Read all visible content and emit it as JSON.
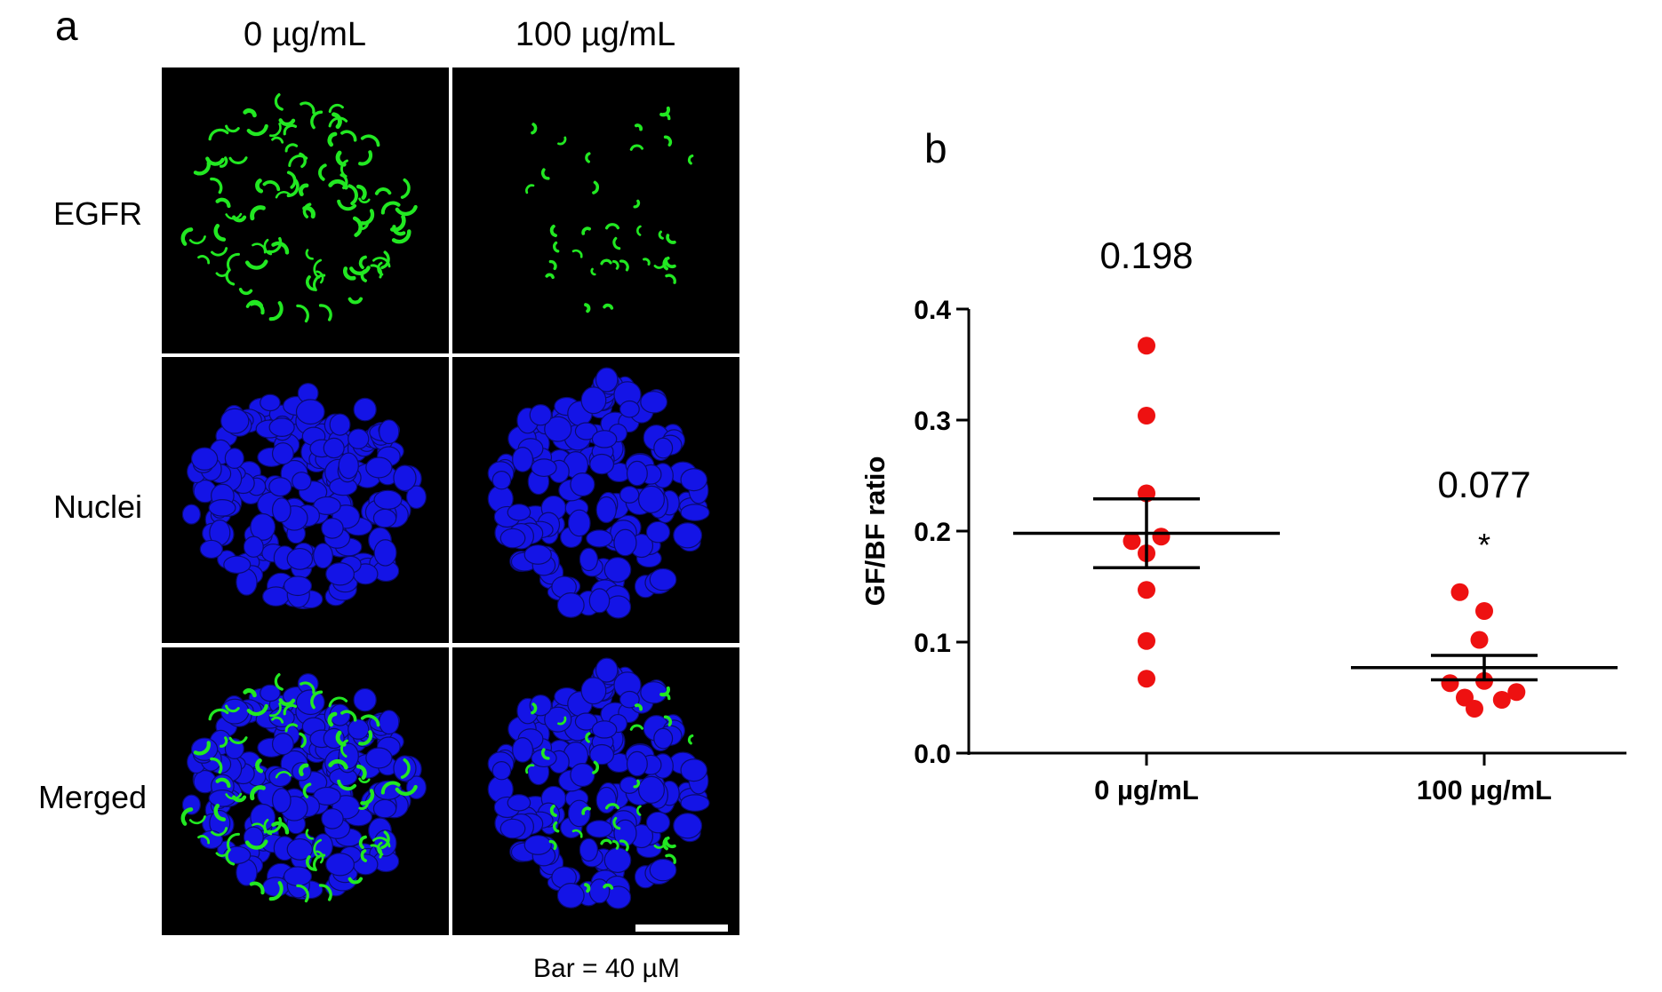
{
  "figure": {
    "panel_a_label": "a",
    "panel_b_label": "b",
    "column_headers": [
      "0 µg/mL",
      "100 µg/mL"
    ],
    "row_labels": [
      "EGFR",
      "Nuclei",
      "Merged"
    ],
    "scale_bar_label": "Bar = 40 µM",
    "colors": {
      "egfr": "#22e822",
      "nuclei": "#1414e6",
      "background": "#000000",
      "points": "#ee1111"
    }
  },
  "chart_data": {
    "type": "scatter",
    "title": "",
    "xlabel": "",
    "ylabel": "GF/BF ratio",
    "categories": [
      "0 µg/mL",
      "100 µg/mL"
    ],
    "ylim": [
      0.0,
      0.4
    ],
    "yticks": [
      "0.0",
      "0.1",
      "0.2",
      "0.3",
      "0.4"
    ],
    "yticks_values": [
      0.0,
      0.1,
      0.2,
      0.3,
      0.4
    ],
    "series": [
      {
        "name": "0 µg/mL",
        "points": [
          {
            "offset": 0.0,
            "value": 0.367
          },
          {
            "offset": 0.0,
            "value": 0.304
          },
          {
            "offset": 0.0,
            "value": 0.234
          },
          {
            "offset": -0.15,
            "value": 0.191
          },
          {
            "offset": 0.15,
            "value": 0.195
          },
          {
            "offset": 0.0,
            "value": 0.18
          },
          {
            "offset": 0.0,
            "value": 0.147
          },
          {
            "offset": 0.0,
            "value": 0.101
          },
          {
            "offset": 0.0,
            "value": 0.067
          }
        ],
        "mean": 0.198,
        "sem_low": 0.167,
        "sem_high": 0.229,
        "mean_label": "0.198",
        "significance": ""
      },
      {
        "name": "100 µg/mL",
        "points": [
          {
            "offset": -0.25,
            "value": 0.145
          },
          {
            "offset": 0.0,
            "value": 0.128
          },
          {
            "offset": -0.05,
            "value": 0.102
          },
          {
            "offset": -0.35,
            "value": 0.063
          },
          {
            "offset": 0.0,
            "value": 0.065
          },
          {
            "offset": -0.2,
            "value": 0.05
          },
          {
            "offset": 0.18,
            "value": 0.048
          },
          {
            "offset": 0.33,
            "value": 0.055
          },
          {
            "offset": -0.1,
            "value": 0.04
          }
        ],
        "mean": 0.077,
        "sem_low": 0.066,
        "sem_high": 0.088,
        "mean_label": "0.077",
        "significance": "*"
      }
    ]
  }
}
